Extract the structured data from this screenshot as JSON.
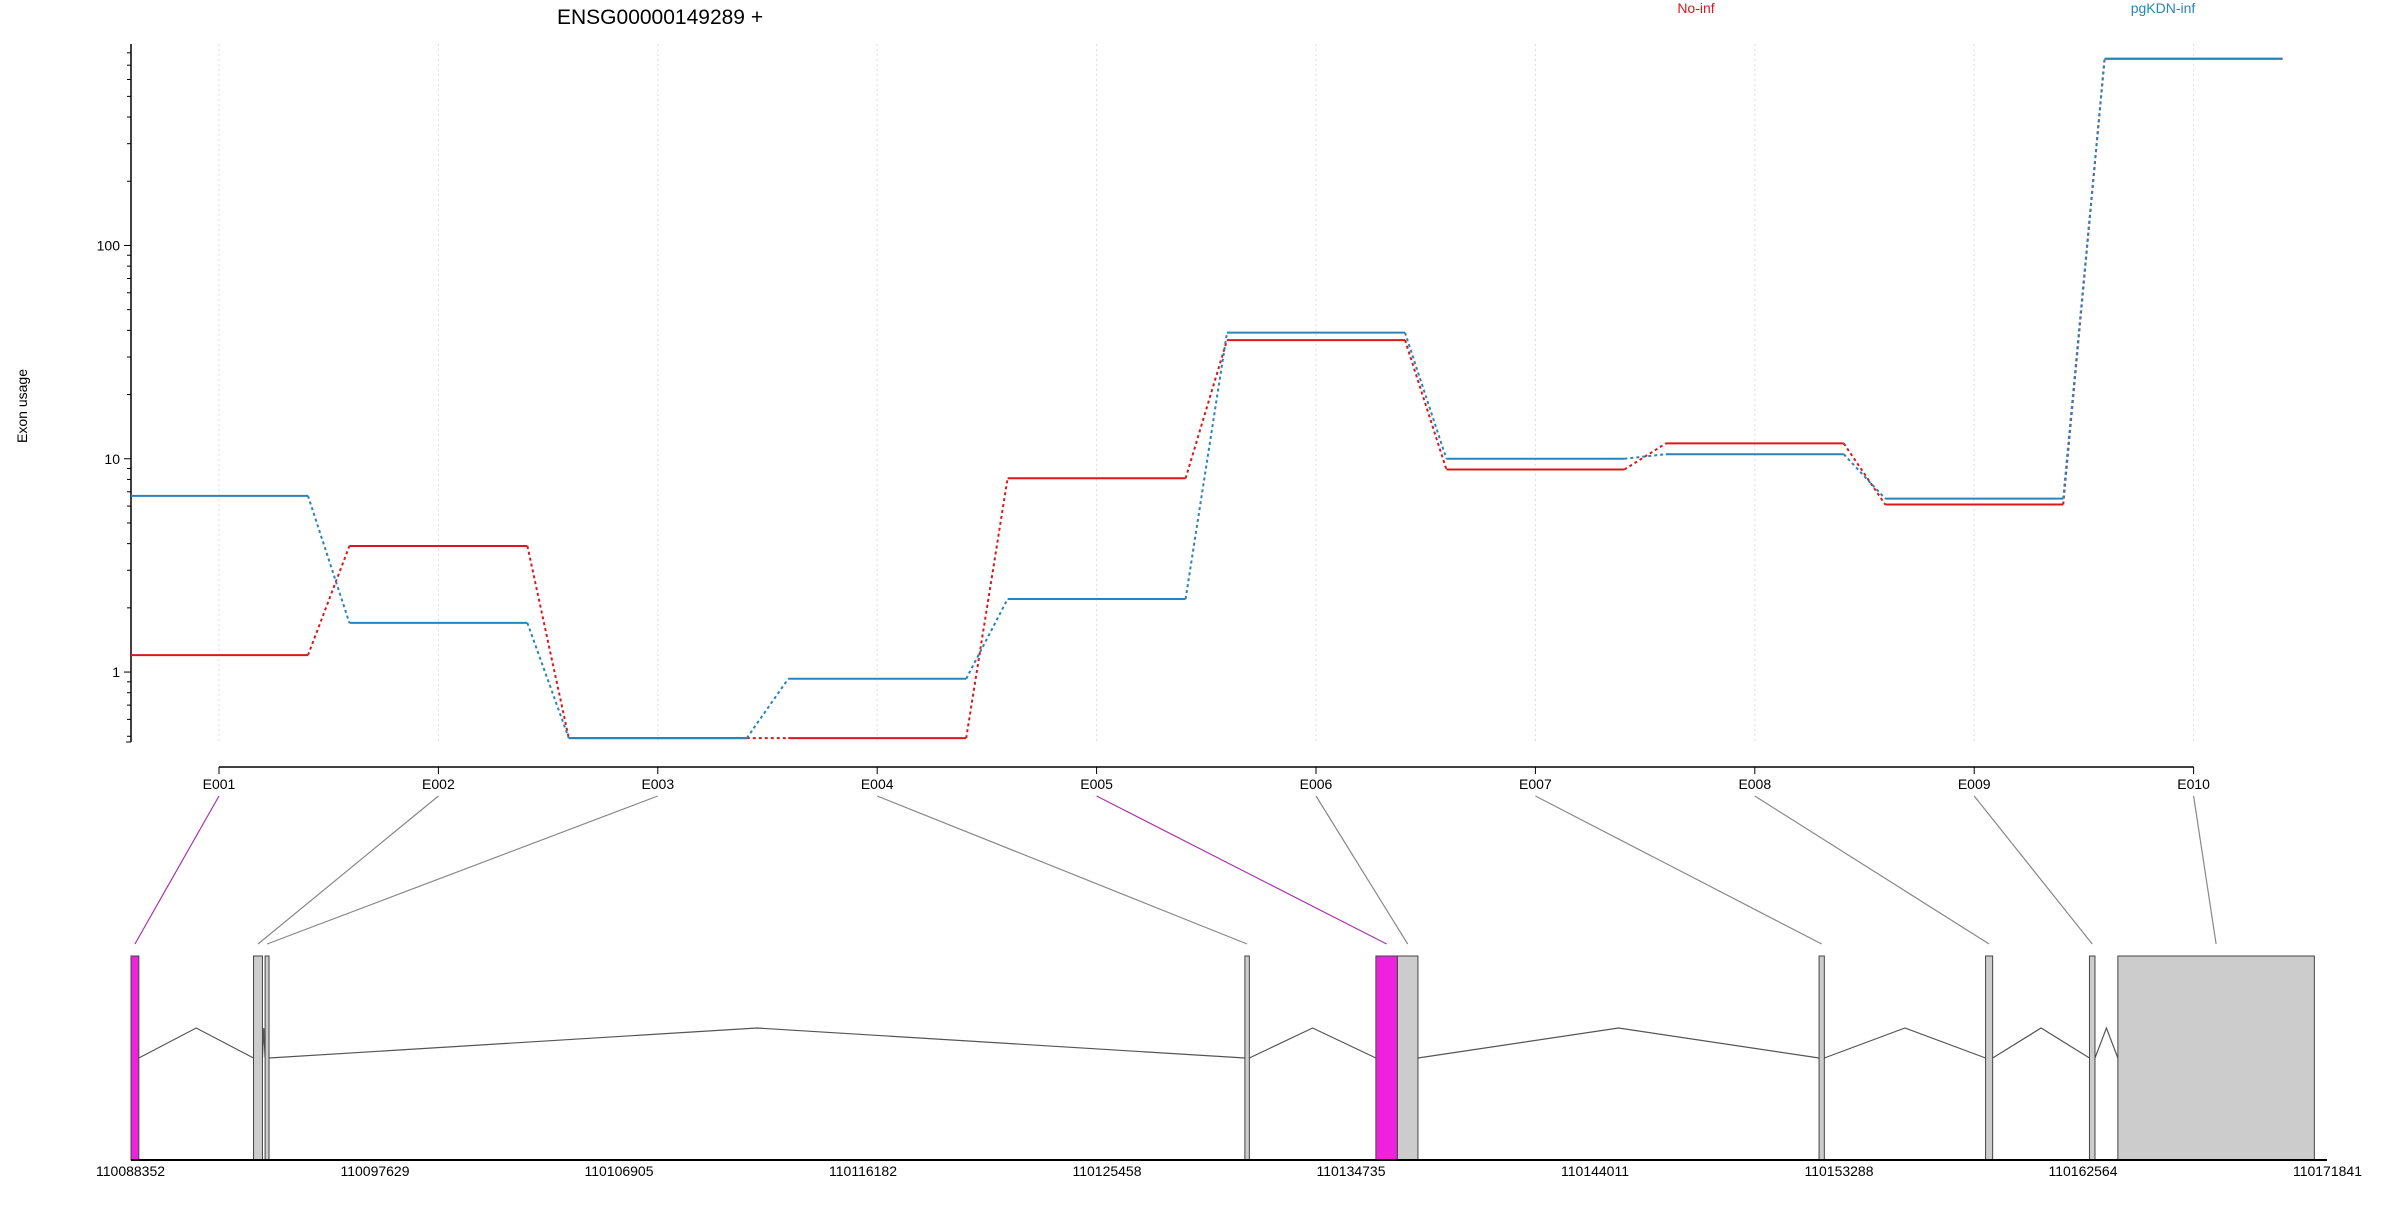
{
  "chart_data": {
    "type": "line",
    "title": "ENSG00000149289 +",
    "ylabel": "Exon usage",
    "yscale": "log",
    "ylim": [
      0.47,
      880
    ],
    "yticks": [
      {
        "value": 1,
        "label": "1"
      },
      {
        "value": 10,
        "label": "10"
      },
      {
        "value": 100,
        "label": "100"
      }
    ],
    "categories": [
      "E001",
      "E002",
      "E003",
      "E004",
      "E005",
      "E006",
      "E007",
      "E008",
      "E009",
      "E010"
    ],
    "series": [
      {
        "name": "No-inf",
        "color": "#d7191c",
        "values": [
          1.2,
          3.9,
          0.49,
          0.49,
          8.1,
          36,
          8.9,
          11.8,
          6.1,
          750
        ]
      },
      {
        "name": "pgKDN-inf",
        "color": "#2b83ba",
        "values": [
          6.7,
          1.7,
          0.49,
          0.93,
          2.2,
          39,
          10.0,
          10.5,
          6.5,
          750
        ]
      }
    ],
    "legend_placement": "top",
    "grid": "vertical-dotted",
    "gene_model": {
      "xaxis_ticks": [
        "110088352",
        "110097629",
        "110106905",
        "110116182",
        "110125458",
        "110134735",
        "110144011",
        "110153288",
        "110162564",
        "110171841"
      ],
      "genomic_range": [
        110088352,
        110171841
      ],
      "exons": [
        {
          "id": "E001",
          "start": 110088352,
          "end": 110088650,
          "highlight": true
        },
        {
          "id": "E002",
          "start": 110093010,
          "end": 110093350,
          "highlight": false
        },
        {
          "id": "E003",
          "start": 110093450,
          "end": 110093600,
          "highlight": false
        },
        {
          "id": "E004",
          "start": 110130700,
          "end": 110130870,
          "highlight": false
        },
        {
          "id": "E005",
          "start": 110135680,
          "end": 110136500,
          "highlight": true
        },
        {
          "id": "E006",
          "start": 110136500,
          "end": 110137280,
          "highlight": false
        },
        {
          "id": "E007",
          "start": 110152530,
          "end": 110152730,
          "highlight": false
        },
        {
          "id": "E008",
          "start": 110158860,
          "end": 110159130,
          "highlight": false
        },
        {
          "id": "E009",
          "start": 110162810,
          "end": 110163020,
          "highlight": false
        },
        {
          "id": "E010",
          "start": 110163890,
          "end": 110171360,
          "highlight": false
        }
      ],
      "exon_color": "#cccccc",
      "highlight_color": "#ee22dd"
    }
  }
}
